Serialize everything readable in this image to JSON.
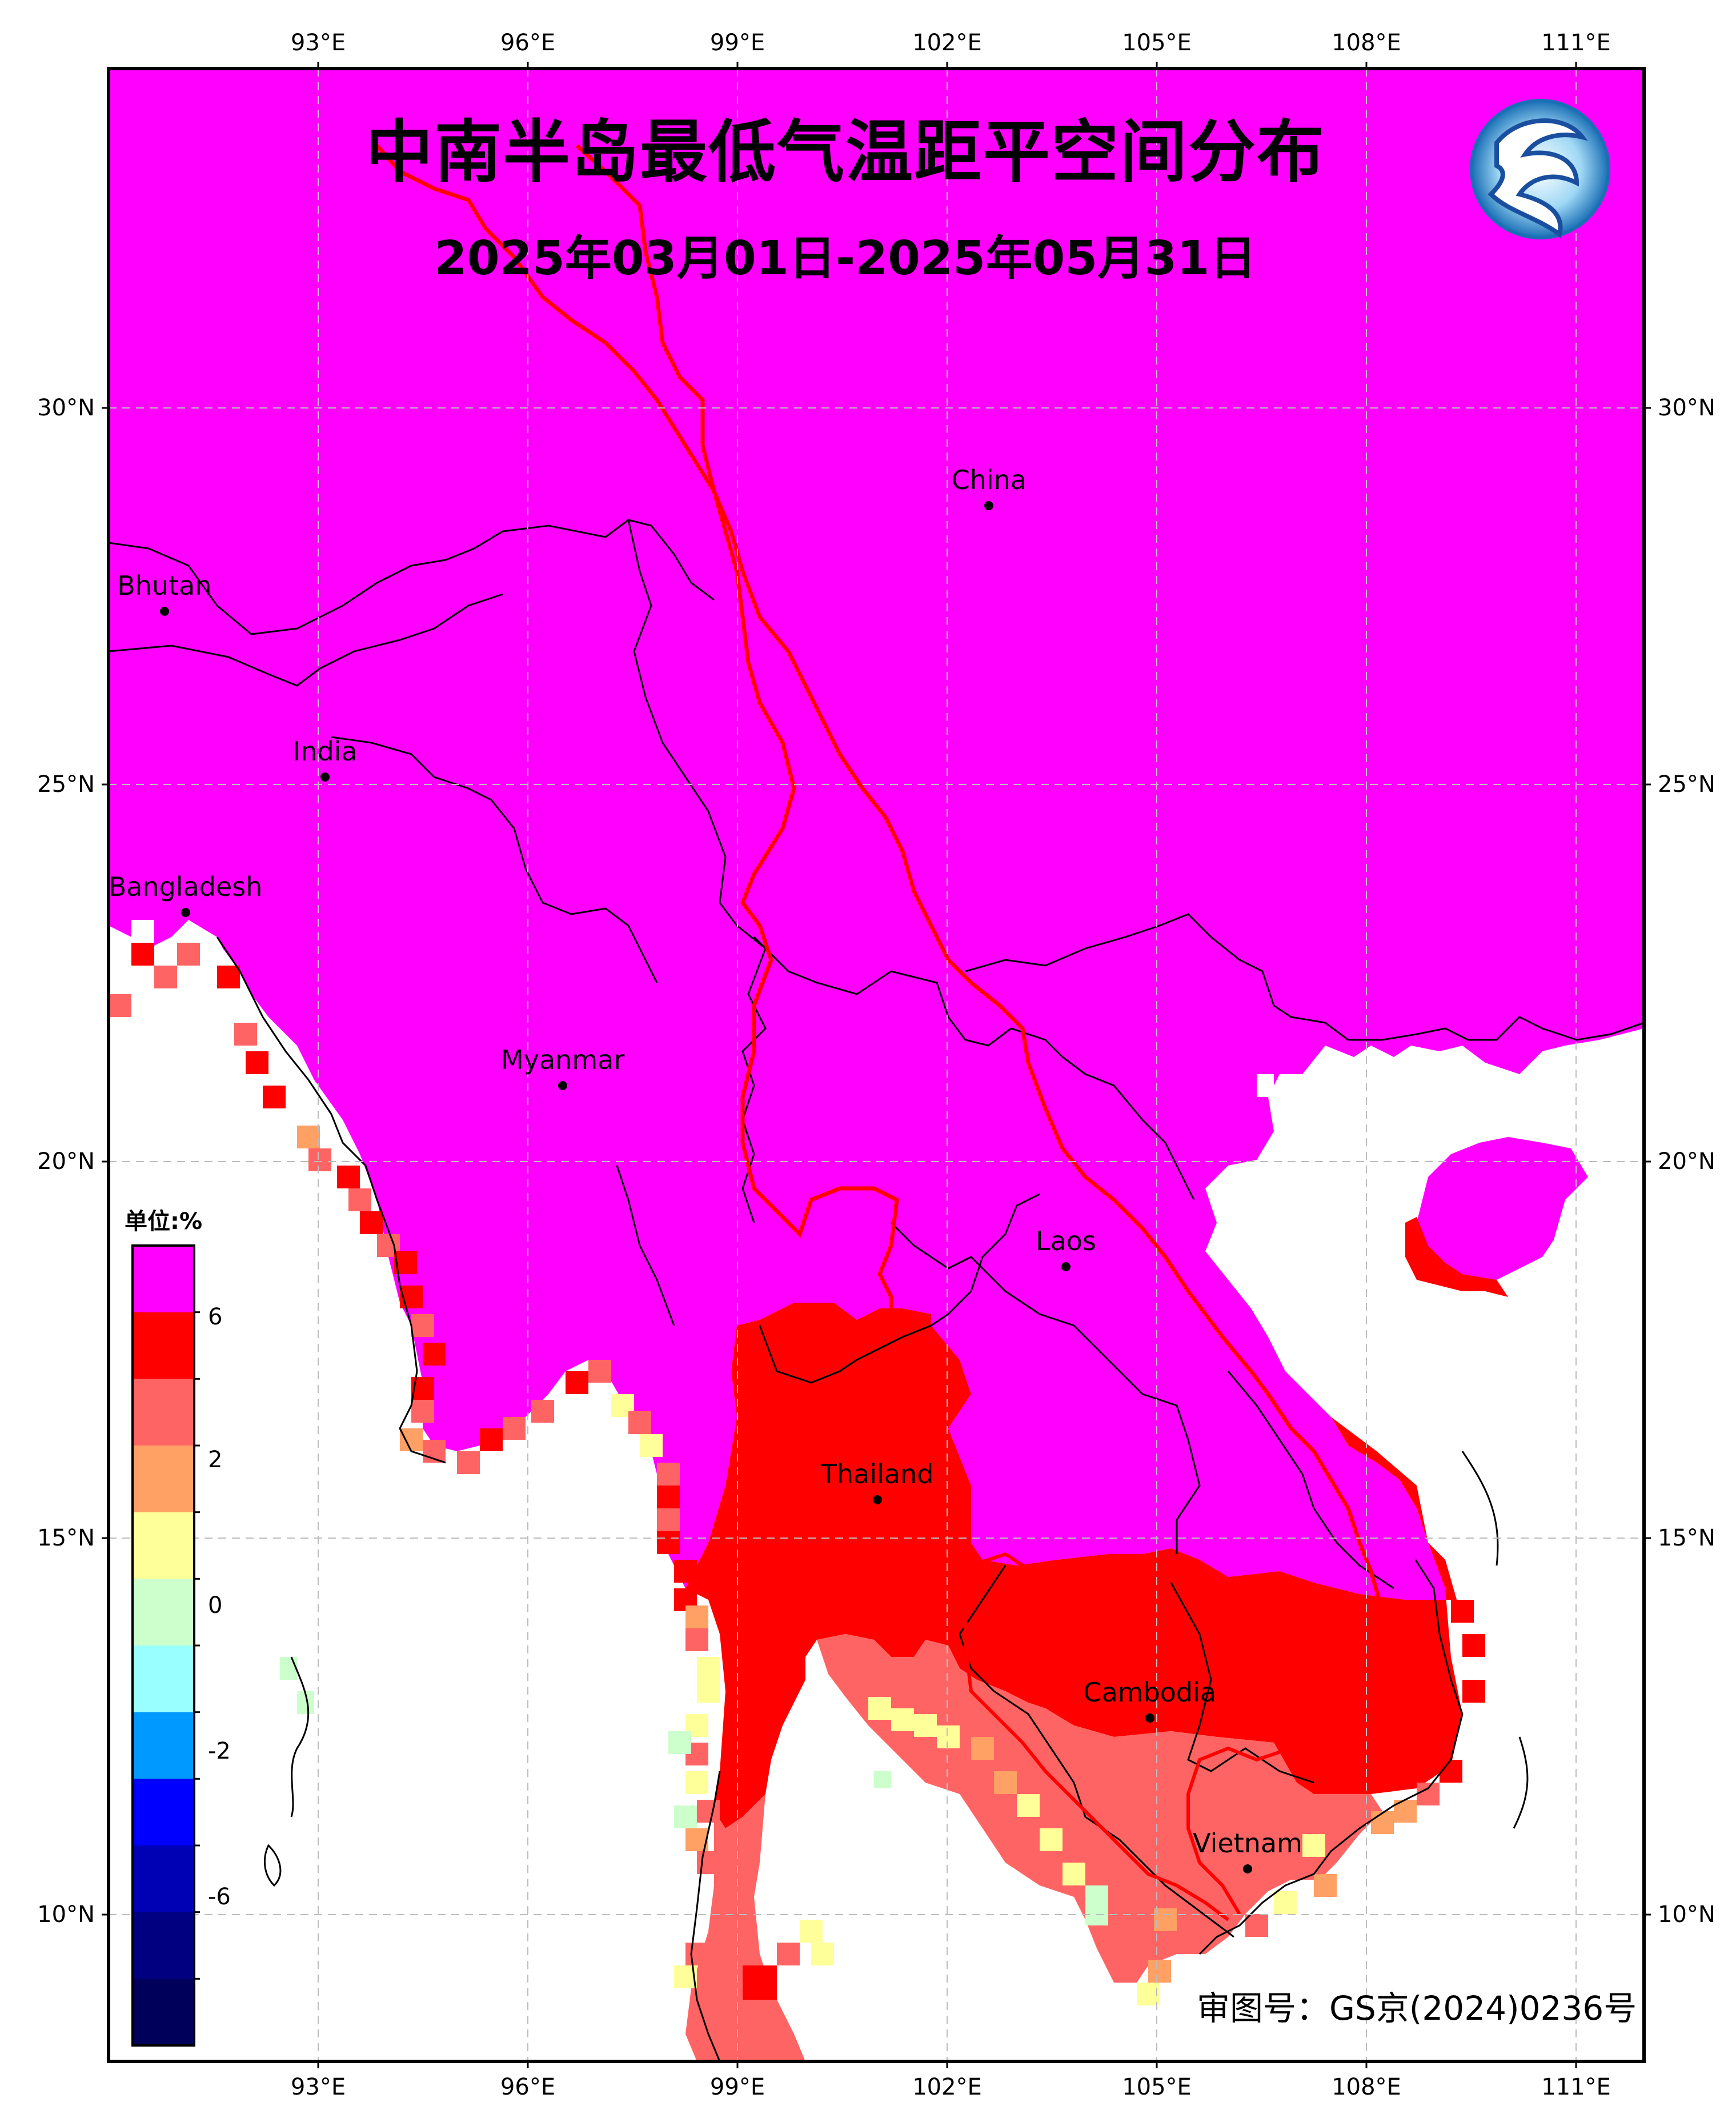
{
  "title": "中南半岛最低气温距平空间分布",
  "subtitle": "2025年03月01日-2025年05月31日",
  "axes": {
    "lon_ticks": [
      "93°E",
      "96°E",
      "99°E",
      "102°E",
      "105°E",
      "108°E",
      "111°E"
    ],
    "lat_ticks": [
      "30°N",
      "25°N",
      "20°N",
      "15°N",
      "10°N"
    ]
  },
  "places": [
    {
      "name": "China",
      "lon": 102.6,
      "lat": 28.7
    },
    {
      "name": "Bhutan",
      "lon": 90.8,
      "lat": 27.3
    },
    {
      "name": "India",
      "lon": 93.1,
      "lat": 25.1
    },
    {
      "name": "Bangladesh",
      "lon": 91.1,
      "lat": 23.3
    },
    {
      "name": "Myanmar",
      "lon": 96.5,
      "lat": 21.0
    },
    {
      "name": "Laos",
      "lon": 103.7,
      "lat": 18.6
    },
    {
      "name": "Thailand",
      "lon": 101.0,
      "lat": 15.5
    },
    {
      "name": "Cambodia",
      "lon": 104.9,
      "lat": 12.6
    },
    {
      "name": "Vietnam",
      "lon": 106.3,
      "lat": 10.6
    }
  ],
  "legend": {
    "unit_label": "单位:%",
    "tick_labels": [
      "6",
      "2",
      "0",
      "-2",
      "-6"
    ],
    "colors": [
      "#ff00ff",
      "#ff0000",
      "#ff6464",
      "#ffa064",
      "#ffff99",
      "#ccffcc",
      "#99ffff",
      "#0099ff",
      "#0000ff",
      "#0000b4",
      "#000080",
      "#00005a"
    ]
  },
  "approval_number": "审图号：GS京(2024)0236号",
  "logo": "cma-dragon-logo"
}
